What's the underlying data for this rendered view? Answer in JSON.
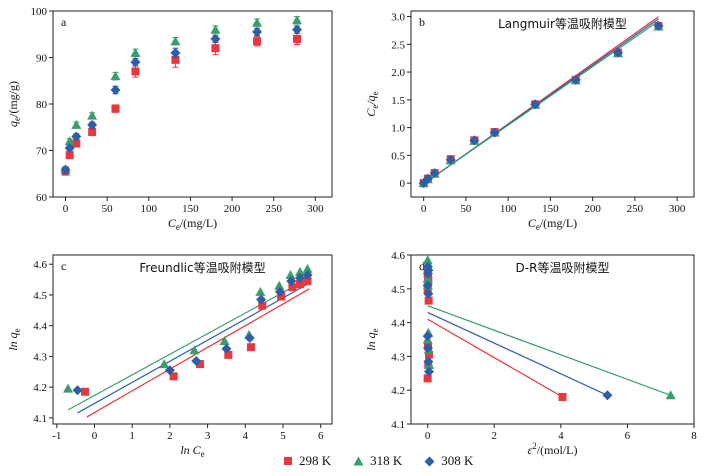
{
  "chart_data": [
    {
      "id": "a",
      "type": "scatter",
      "panel_label": "a",
      "title": "",
      "xlabel_main": "C",
      "xlabel_sub": "e",
      "xlabel_rest": "/(mg/L)",
      "ylabel_main": "q",
      "ylabel_sub": "e",
      "ylabel_rest": "/(mg/g)",
      "xlim": [
        -15,
        320
      ],
      "ylim": [
        60,
        100
      ],
      "xticks": [
        0,
        50,
        100,
        150,
        200,
        250,
        300
      ],
      "yticks": [
        60,
        70,
        80,
        90,
        100
      ],
      "tick_labels_x": [
        "0",
        "50",
        "100",
        "150",
        "200",
        "250",
        "300"
      ],
      "tick_labels_y": [
        "60",
        "70",
        "80",
        "90",
        "100"
      ],
      "error_bars": true,
      "series": [
        {
          "name": "298 K",
          "x": [
            0,
            5,
            13,
            32,
            60,
            84,
            132,
            180,
            230,
            278
          ],
          "y": [
            65.5,
            69,
            71.5,
            74,
            79,
            87,
            89.5,
            92,
            93.5,
            94
          ],
          "err": [
            0.8,
            0.6,
            0.7,
            0.8,
            0.8,
            1.2,
            1.6,
            1.4,
            1.0,
            1.2
          ]
        },
        {
          "name": "318 K",
          "x": [
            0,
            5,
            13,
            32,
            60,
            84,
            132,
            180,
            230,
            278
          ],
          "y": [
            66,
            72,
            75.5,
            77.5,
            86,
            91,
            93.5,
            96,
            97.5,
            98
          ],
          "err": [
            0.6,
            0.5,
            0.6,
            0.6,
            0.8,
            0.8,
            0.8,
            0.8,
            0.8,
            0.8
          ]
        },
        {
          "name": "308 K",
          "x": [
            0,
            5,
            13,
            32,
            60,
            84,
            132,
            180,
            230,
            278
          ],
          "y": [
            65.8,
            70.5,
            73,
            75.5,
            83,
            89,
            91,
            94,
            95.5,
            96
          ],
          "err": [
            0.6,
            0.5,
            0.6,
            0.6,
            0.8,
            0.8,
            1.0,
            0.8,
            0.8,
            0.8
          ]
        }
      ]
    },
    {
      "id": "b",
      "type": "scatter",
      "panel_label": "b",
      "title": "Langmuir等温吸附模型",
      "xlabel_main": "C",
      "xlabel_sub": "e",
      "xlabel_rest": "/(mg/L)",
      "ylabel_main": "C",
      "ylabel_sub": "e",
      "ylabel_rest": "/q",
      "ylabel_sub2": "e",
      "xlim": [
        -15,
        320
      ],
      "ylim": [
        -0.25,
        3.1
      ],
      "xticks": [
        0,
        50,
        100,
        150,
        200,
        250,
        300
      ],
      "yticks": [
        0,
        0.5,
        1.0,
        1.5,
        2.0,
        2.5,
        3.0
      ],
      "tick_labels_x": [
        "0",
        "50",
        "100",
        "150",
        "200",
        "250",
        "300"
      ],
      "tick_labels_y": [
        "0",
        "0.5",
        "1.0",
        "1.5",
        "2.0",
        "2.5",
        "3.0"
      ],
      "series": [
        {
          "name": "298 K",
          "x": [
            0,
            5,
            13,
            32,
            60,
            84,
            132,
            180,
            230,
            278
          ],
          "y": [
            0.0,
            0.08,
            0.18,
            0.43,
            0.77,
            0.92,
            1.42,
            1.86,
            2.35,
            2.83
          ]
        },
        {
          "name": "318 K",
          "x": [
            0,
            5,
            13,
            32,
            60,
            84,
            132,
            180,
            230,
            278
          ],
          "y": [
            0.0,
            0.07,
            0.17,
            0.41,
            0.76,
            0.91,
            1.41,
            1.85,
            2.34,
            2.82
          ]
        },
        {
          "name": "308 K",
          "x": [
            0,
            5,
            13,
            32,
            60,
            84,
            132,
            180,
            230,
            278
          ],
          "y": [
            0.0,
            0.08,
            0.18,
            0.42,
            0.77,
            0.91,
            1.42,
            1.86,
            2.35,
            2.83
          ]
        }
      ],
      "fit_lines": [
        {
          "name": "298 K",
          "x": [
            0,
            278
          ],
          "y": [
            -0.02,
            3.0
          ]
        },
        {
          "name": "308 K",
          "x": [
            0,
            278
          ],
          "y": [
            -0.01,
            2.96
          ]
        },
        {
          "name": "318 K",
          "x": [
            0,
            278
          ],
          "y": [
            -0.01,
            2.92
          ]
        }
      ]
    },
    {
      "id": "c",
      "type": "scatter",
      "panel_label": "c",
      "title": "Freundlic等温吸附模型",
      "xlabel_main": "ln C",
      "xlabel_sub": "e",
      "xlabel_rest": "",
      "ylabel_main": "ln q",
      "ylabel_sub": "e",
      "ylabel_rest": "",
      "xlim": [
        -1.1,
        6.3
      ],
      "ylim": [
        4.08,
        4.63
      ],
      "xticks": [
        -1,
        0,
        1,
        2,
        3,
        4,
        5,
        6
      ],
      "yticks": [
        4.1,
        4.2,
        4.3,
        4.4,
        4.5,
        4.6
      ],
      "tick_labels_x": [
        "-1",
        "0",
        "1",
        "2",
        "3",
        "4",
        "5",
        "6"
      ],
      "tick_labels_y": [
        "4.1",
        "4.2",
        "4.3",
        "4.4",
        "4.5",
        "4.6"
      ],
      "series": [
        {
          "name": "298 K",
          "x": [
            -0.25,
            2.1,
            2.8,
            3.55,
            4.15,
            4.45,
            4.95,
            5.25,
            5.45,
            5.65
          ],
          "y": [
            4.185,
            4.235,
            4.275,
            4.305,
            4.33,
            4.465,
            4.495,
            4.525,
            4.535,
            4.545
          ]
        },
        {
          "name": "318 K",
          "x": [
            -0.7,
            1.85,
            2.65,
            3.45,
            4.1,
            4.4,
            4.9,
            5.2,
            5.45,
            5.65
          ],
          "y": [
            4.195,
            4.275,
            4.32,
            4.35,
            4.37,
            4.51,
            4.53,
            4.565,
            4.575,
            4.585
          ]
        },
        {
          "name": "308 K",
          "x": [
            -0.45,
            2.0,
            2.7,
            3.5,
            4.12,
            4.42,
            4.92,
            5.22,
            5.45,
            5.65
          ],
          "y": [
            4.19,
            4.255,
            4.285,
            4.325,
            4.36,
            4.485,
            4.51,
            4.545,
            4.555,
            4.565
          ]
        }
      ],
      "fit_lines": [
        {
          "name": "298 K",
          "x": [
            -0.2,
            5.7
          ],
          "y": [
            4.103,
            4.52
          ]
        },
        {
          "name": "308 K",
          "x": [
            -0.45,
            5.7
          ],
          "y": [
            4.116,
            4.538
          ]
        },
        {
          "name": "318 K",
          "x": [
            -0.7,
            5.7
          ],
          "y": [
            4.126,
            4.555
          ]
        }
      ]
    },
    {
      "id": "d",
      "type": "scatter",
      "panel_label": "d",
      "title": "D-R等温吸附模型",
      "xlabel_main": "ε",
      "xlabel_sup": "2",
      "xlabel_rest": "/(mol/L)",
      "ylabel_main": "ln q",
      "ylabel_sub": "e",
      "ylabel_rest": "",
      "xlim": [
        -0.5,
        8.0
      ],
      "ylim": [
        4.1,
        4.6
      ],
      "xticks": [
        0,
        2,
        4,
        6,
        8
      ],
      "yticks": [
        4.1,
        4.2,
        4.3,
        4.4,
        4.5,
        4.6
      ],
      "tick_labels_x": [
        "0",
        "2",
        "4",
        "6",
        "8"
      ],
      "tick_labels_y": [
        "4.1",
        "4.2",
        "4.3",
        "4.4",
        "4.5",
        "4.6"
      ],
      "series": [
        {
          "name": "298 K",
          "x": [
            4.05,
            0.0,
            0.02,
            0.04,
            0.01,
            0.03,
            0.0,
            0.02,
            0.01,
            0.0
          ],
          "y": [
            4.18,
            4.235,
            4.275,
            4.305,
            4.33,
            4.465,
            4.495,
            4.525,
            4.535,
            4.545
          ]
        },
        {
          "name": "318 K",
          "x": [
            7.3,
            0.05,
            0.03,
            0.0,
            0.02,
            0.01,
            0.0,
            0.02,
            0.01,
            0.0
          ],
          "y": [
            4.185,
            4.275,
            4.32,
            4.35,
            4.37,
            4.51,
            4.53,
            4.565,
            4.575,
            4.585
          ]
        },
        {
          "name": "308 K",
          "x": [
            5.4,
            0.04,
            0.02,
            0.01,
            0.0,
            0.02,
            0.0,
            0.01,
            0.02,
            0.0
          ],
          "y": [
            4.185,
            4.255,
            4.285,
            4.325,
            4.36,
            4.485,
            4.51,
            4.545,
            4.555,
            4.565
          ]
        }
      ],
      "fit_lines": [
        {
          "name": "298 K",
          "x": [
            0,
            4.05
          ],
          "y": [
            4.41,
            4.18
          ]
        },
        {
          "name": "308 K",
          "x": [
            0,
            5.4
          ],
          "y": [
            4.43,
            4.185
          ]
        },
        {
          "name": "318 K",
          "x": [
            0,
            7.3
          ],
          "y": [
            4.45,
            4.185
          ]
        }
      ]
    }
  ],
  "legend": {
    "entries": [
      {
        "label": "298 K",
        "color": "#e8383d",
        "marker": "square"
      },
      {
        "label": "318 K",
        "color": "#3a9e6a",
        "marker": "triangle"
      },
      {
        "label": "308 K",
        "color": "#2e5eaa",
        "marker": "diamond"
      }
    ]
  },
  "colors": {
    "298 K": "#e8383d",
    "318 K": "#3a9e6a",
    "308 K": "#2e5eaa"
  }
}
